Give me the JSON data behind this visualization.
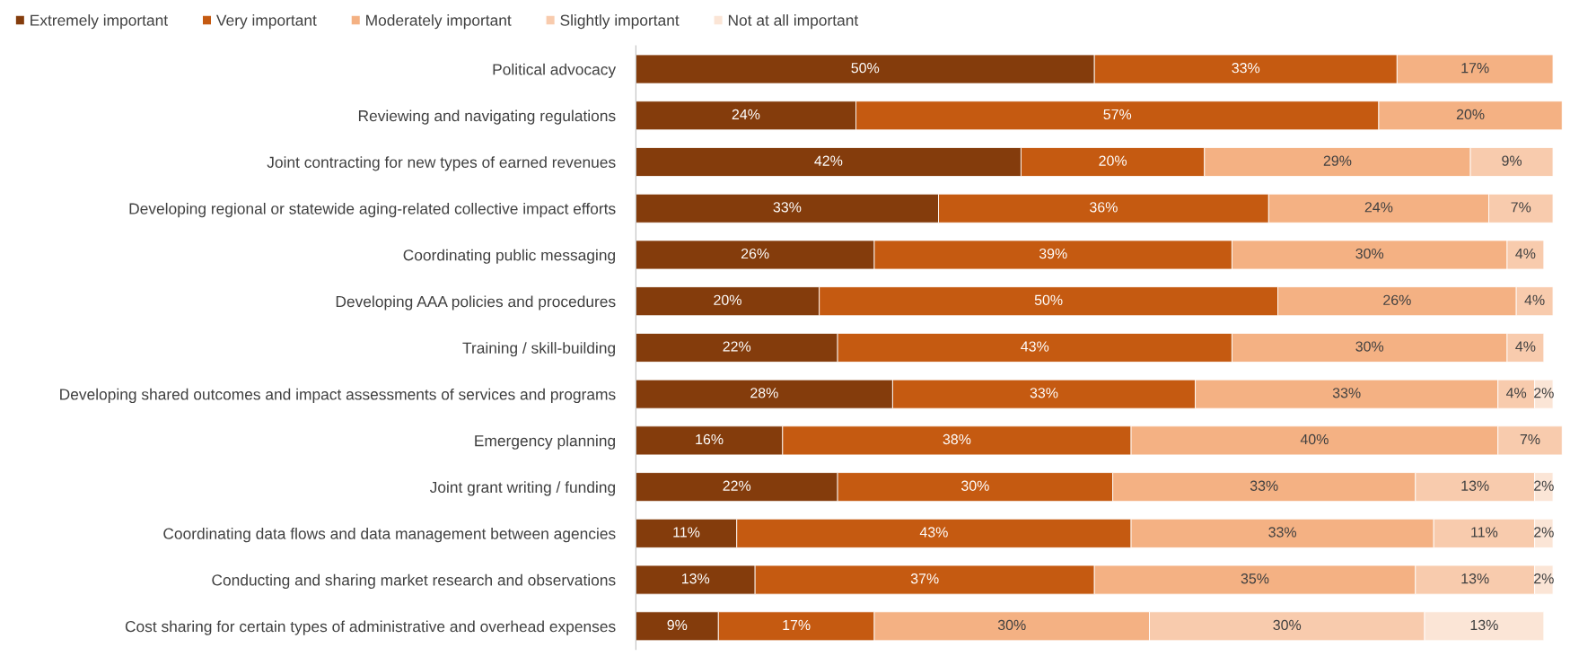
{
  "chart_data": {
    "type": "bar",
    "orientation": "horizontal",
    "stacked": true,
    "legend": "top left",
    "tick_labels": "y",
    "grid": false,
    "xlim": [
      0,
      101
    ],
    "categories": [
      "Political advocacy",
      "Reviewing and navigating regulations",
      "Joint contracting for new types of earned revenues",
      "Developing regional or statewide aging-related collective impact efforts",
      "Coordinating public messaging",
      "Developing AAA policies and procedures",
      "Training / skill-building",
      "Developing shared outcomes and impact assessments of services and programs",
      "Emergency planning",
      "Joint grant writing / funding",
      "Coordinating data flows and data management between agencies",
      "Conducting and sharing market research and observations",
      "Cost sharing for certain types of administrative and overhead expenses"
    ],
    "series": [
      {
        "name": "Extremely important",
        "color": "#843c0c",
        "values": [
          50,
          24,
          42,
          33,
          26,
          20,
          22,
          28,
          16,
          22,
          11,
          13,
          9
        ],
        "value_labels": [
          "50%",
          "24%",
          "42%",
          "33%",
          "26%",
          "20%",
          "22%",
          "28%",
          "16%",
          "22%",
          "11%",
          "13%",
          "9%"
        ]
      },
      {
        "name": "Very important",
        "color": "#c55a11",
        "values": [
          33,
          57,
          20,
          36,
          39,
          50,
          43,
          33,
          38,
          30,
          43,
          37,
          17
        ],
        "value_labels": [
          "33%",
          "57%",
          "20%",
          "36%",
          "39%",
          "50%",
          "43%",
          "33%",
          "38%",
          "30%",
          "43%",
          "37%",
          "17%"
        ]
      },
      {
        "name": "Moderately important",
        "color": "#f4b183",
        "values": [
          17,
          20,
          29,
          24,
          30,
          26,
          30,
          33,
          40,
          33,
          33,
          35,
          30
        ],
        "value_labels": [
          "17%",
          "20%",
          "29%",
          "24%",
          "30%",
          "26%",
          "30%",
          "33%",
          "40%",
          "33%",
          "33%",
          "35%",
          "30%"
        ]
      },
      {
        "name": "Slightly important",
        "color": "#f8cbad",
        "values": [
          null,
          null,
          9,
          7,
          4,
          4,
          4,
          4,
          7,
          13,
          11,
          13,
          30
        ],
        "value_labels": [
          null,
          null,
          "9%",
          "7%",
          "4%",
          "4%",
          "4%",
          "4%",
          "7%",
          "13%",
          "11%",
          "13%",
          "30%"
        ]
      },
      {
        "name": "Not at all important",
        "color": "#fbe5d6",
        "values": [
          null,
          null,
          null,
          null,
          null,
          null,
          null,
          2,
          null,
          2,
          2,
          2,
          13
        ],
        "value_labels": [
          null,
          null,
          null,
          null,
          null,
          null,
          null,
          "2%",
          null,
          "2%",
          "2%",
          "2%",
          "13%"
        ]
      }
    ]
  }
}
